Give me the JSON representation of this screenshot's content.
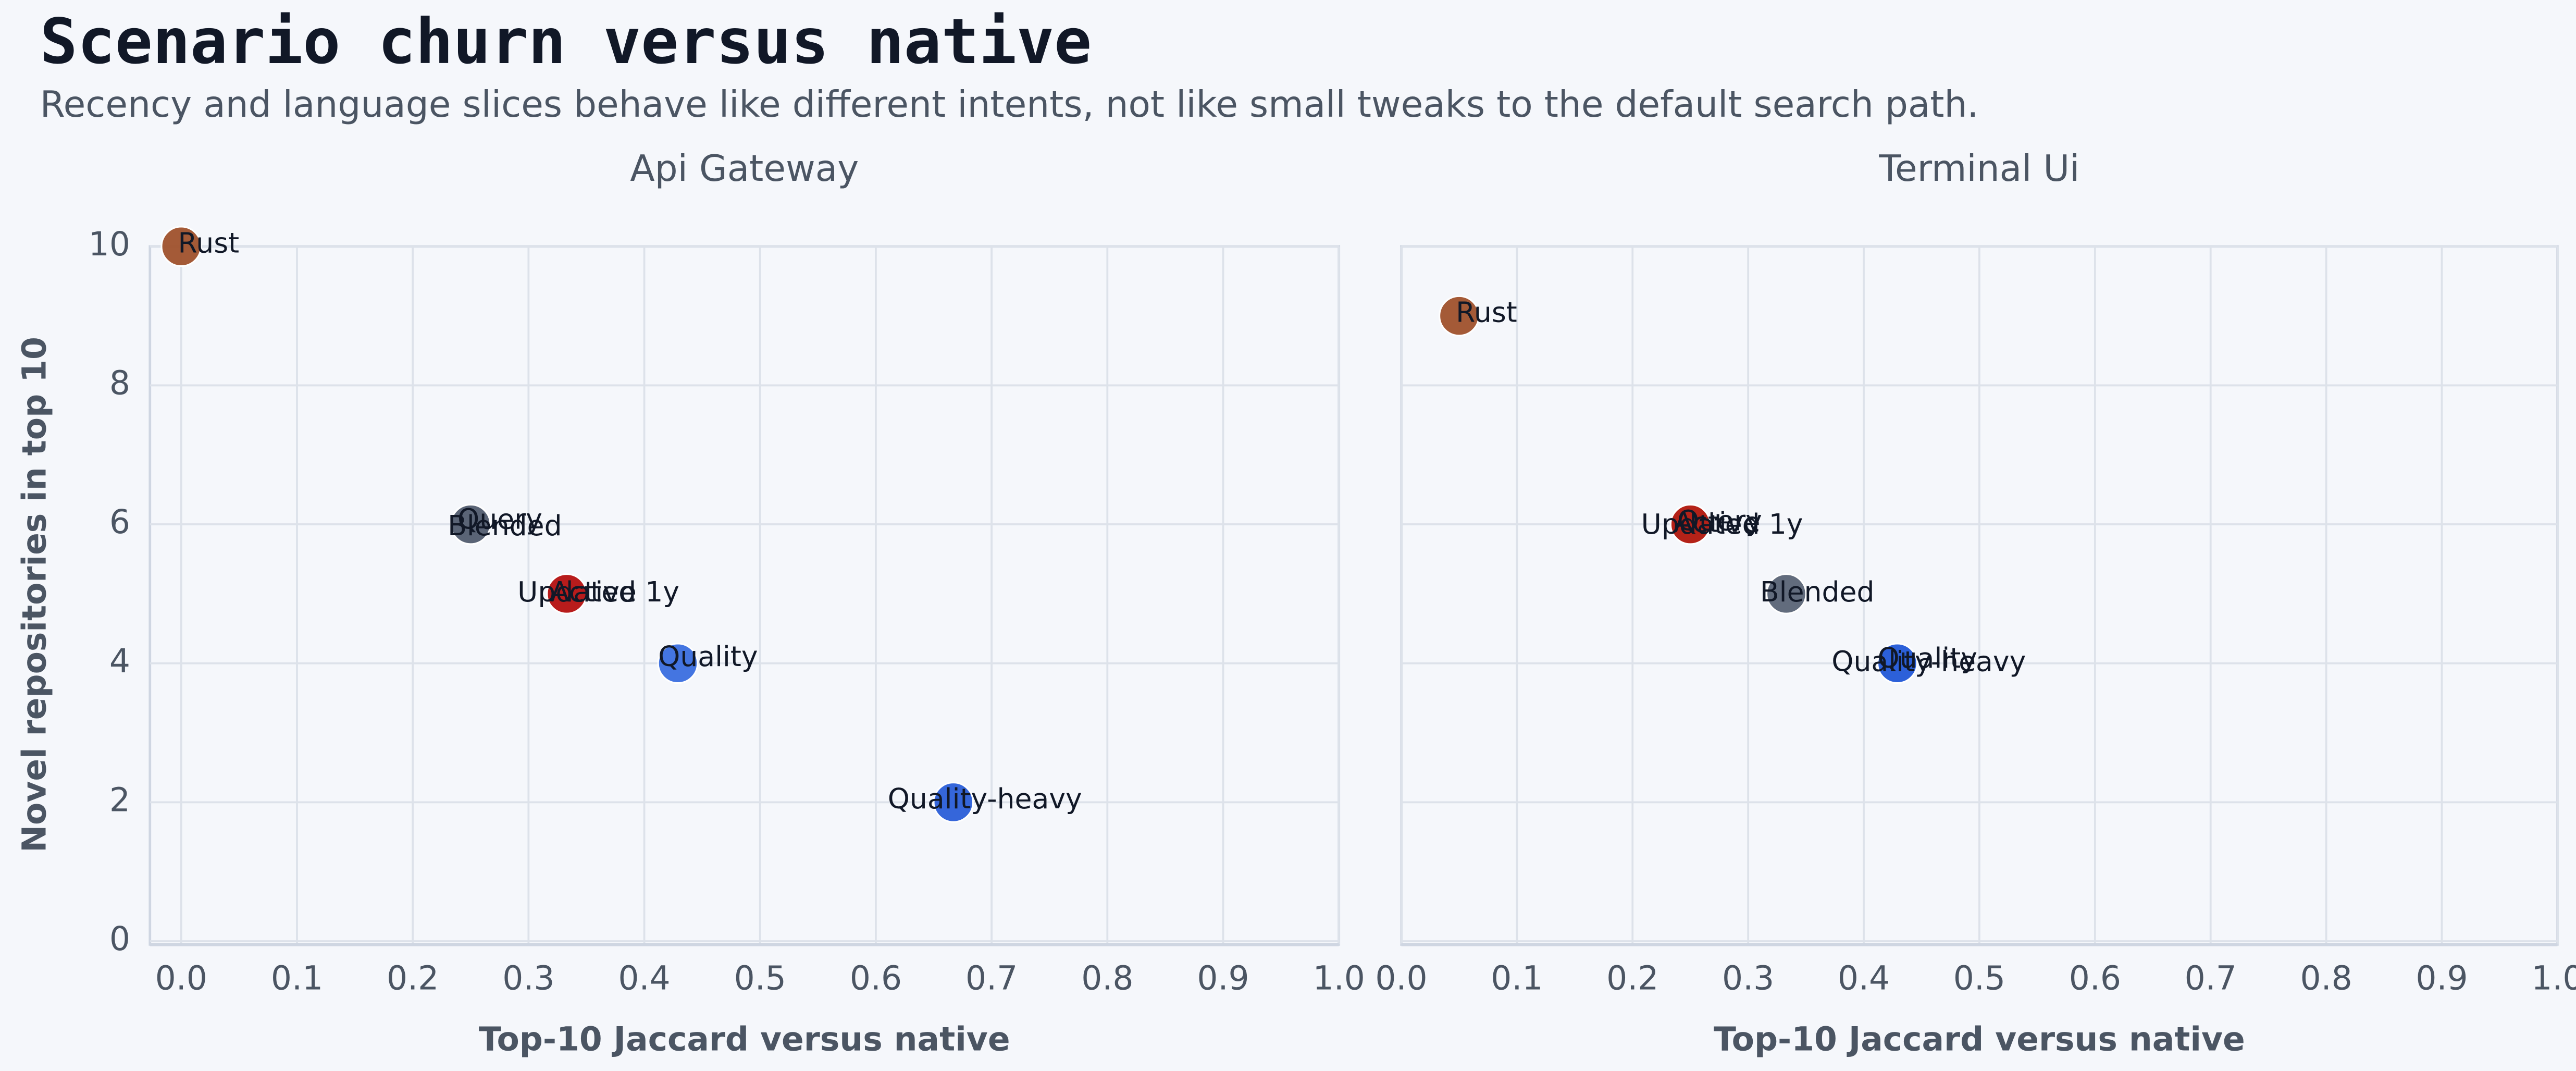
{
  "title": "Scenario churn versus native",
  "subtitle": "Recency and language slices behave like different intents, not like small tweaks to the default search path.",
  "chart_data": [
    {
      "type": "scatter",
      "title": "Api Gateway",
      "xlabel": "Top-10 Jaccard versus native",
      "ylabel": "Novel repositories in top 10",
      "xlim": [
        -0.027,
        1.0
      ],
      "ylim": [
        0,
        10
      ],
      "xticks": [
        {
          "value": 0,
          "label": "0.0"
        },
        0.1,
        0.2,
        0.3,
        0.4,
        0.5,
        0.6,
        0.7,
        0.8,
        0.9,
        {
          "value": 1,
          "label": "1.0"
        }
      ],
      "yticks": [
        0,
        2,
        4,
        6,
        8,
        10
      ],
      "grid": true,
      "series": [
        {
          "name": "Rust",
          "color": "#a0522d",
          "x": [
            0.0
          ],
          "values": [
            10
          ]
        },
        {
          "name": "Query",
          "color": "#4b5563",
          "x": [
            0.25
          ],
          "values": [
            6
          ]
        },
        {
          "name": "Blended",
          "color": "#5b6577",
          "x": [
            0.25
          ],
          "values": [
            6
          ]
        },
        {
          "name": "Active",
          "color": "#b42318",
          "x": [
            0.333
          ],
          "values": [
            5
          ]
        },
        {
          "name": "Updated 1y",
          "color": "#b91c1c",
          "x": [
            0.333
          ],
          "values": [
            5
          ]
        },
        {
          "name": "Quality",
          "color": "#3b6fe0",
          "x": [
            0.429
          ],
          "values": [
            4
          ]
        },
        {
          "name": "Quality-heavy",
          "color": "#2b5fd9",
          "x": [
            0.667
          ],
          "values": [
            2
          ]
        }
      ]
    },
    {
      "type": "scatter",
      "title": "Terminal Ui",
      "xlabel": "Top-10 Jaccard versus native",
      "xlim": [
        0,
        1.0
      ],
      "ylim": [
        0,
        10
      ],
      "xticks": [
        {
          "value": 0,
          "label": "0.0"
        },
        0.1,
        0.2,
        0.3,
        0.4,
        0.5,
        0.6,
        0.7,
        0.8,
        0.9,
        {
          "value": 1,
          "label": "1.0"
        }
      ],
      "yticks": [
        0,
        2,
        4,
        6,
        8,
        10
      ],
      "grid": true,
      "series": [
        {
          "name": "Rust",
          "color": "#a0522d",
          "x": [
            0.05
          ],
          "values": [
            9
          ]
        },
        {
          "name": "Query",
          "color": "#b42318",
          "x": [
            0.25
          ],
          "values": [
            6
          ]
        },
        {
          "name": "Active",
          "color": "#b91c1c",
          "x": [
            0.25
          ],
          "values": [
            6
          ]
        },
        {
          "name": "Updated 1y",
          "color": "#b42318",
          "x": [
            0.25
          ],
          "values": [
            6
          ]
        },
        {
          "name": "Blended",
          "color": "#5b6577",
          "x": [
            0.333
          ],
          "values": [
            5
          ]
        },
        {
          "name": "Quality",
          "color": "#3b6fe0",
          "x": [
            0.429
          ],
          "values": [
            4
          ]
        },
        {
          "name": "Quality-heavy",
          "color": "#2b5fd9",
          "x": [
            0.429
          ],
          "values": [
            4
          ]
        }
      ]
    }
  ]
}
